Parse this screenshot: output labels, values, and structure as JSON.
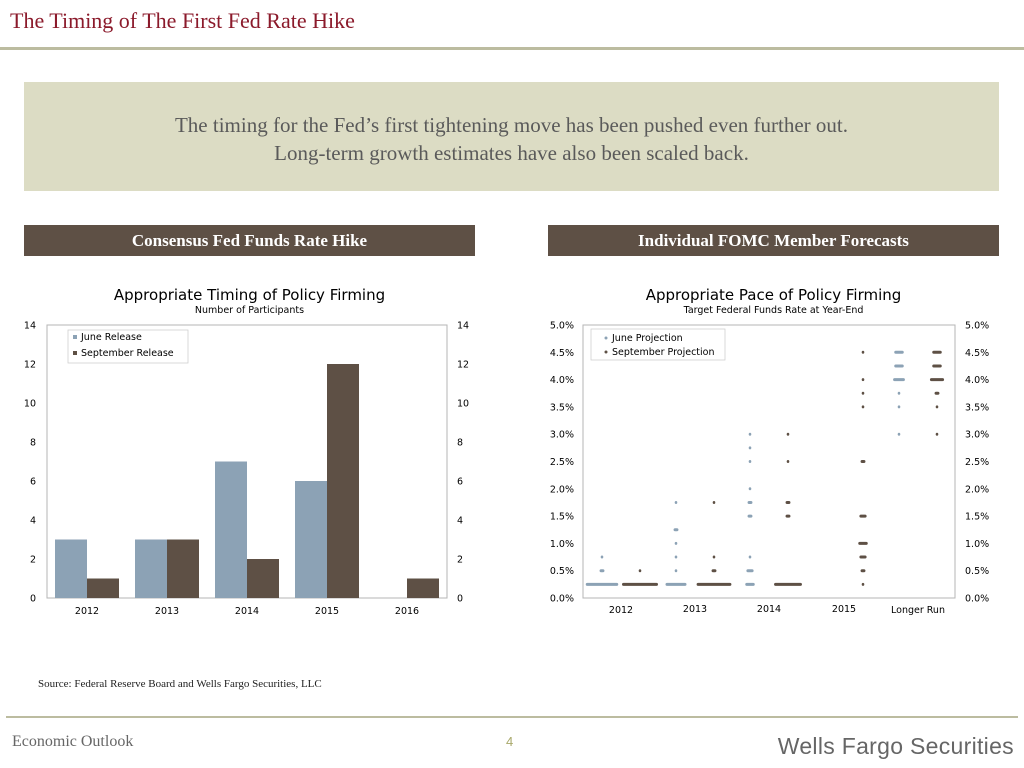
{
  "page": {
    "title": "The Timing of The First Fed Rate Hike",
    "banner_line1": "The timing for the Fed’s first tightening move has been pushed even further out.",
    "banner_line2": "Long-term growth estimates have also been scaled back.",
    "left_header": "Consensus Fed Funds Rate Hike",
    "right_header": "Individual FOMC Member Forecasts",
    "source": "Source: Federal Reserve Board and Wells Fargo Securities, LLC",
    "footer_left": "Economic Outlook",
    "page_number": "4",
    "brand": "Wells Fargo Securities"
  },
  "colors": {
    "june": "#8ca2b5",
    "september": "#5e5045",
    "title": "#8b1a2b",
    "header_box": "#5e5045",
    "banner": "#dcdcc4"
  },
  "chart_data": [
    {
      "type": "bar",
      "title": "Appropriate Timing of Policy Firming",
      "subtitle": "Number of Participants",
      "categories": [
        "2012",
        "2013",
        "2014",
        "2015",
        "2016"
      ],
      "series": [
        {
          "name": "June Release",
          "values": [
            3,
            3,
            7,
            6,
            0
          ]
        },
        {
          "name": "September Release",
          "values": [
            1,
            3,
            2,
            12,
            1
          ]
        }
      ],
      "ylim": [
        0,
        14
      ],
      "yticks": [
        "0",
        "2",
        "4",
        "6",
        "8",
        "10",
        "12",
        "14"
      ],
      "legend_position": "top-left",
      "grid": false
    },
    {
      "type": "scatter",
      "title": "Appropriate Pace of Policy Firming",
      "subtitle": "Target Federal Funds Rate at Year-End",
      "categories": [
        "2012",
        "2013",
        "2014",
        "2015",
        "Longer Run"
      ],
      "ylim": [
        0,
        5
      ],
      "yticks": [
        "0.0%",
        "0.5%",
        "1.0%",
        "1.5%",
        "2.0%",
        "2.5%",
        "3.0%",
        "3.5%",
        "4.0%",
        "4.5%",
        "5.0%"
      ],
      "legend_position": "top-left",
      "grid": false,
      "series": [
        {
          "name": "June Projection",
          "points": [
            {
              "x": "2012",
              "y": 0.25,
              "count": 14
            },
            {
              "x": "2012",
              "y": 0.5,
              "count": 2
            },
            {
              "x": "2012",
              "y": 0.75,
              "count": 1
            },
            {
              "x": "2013",
              "y": 0.25,
              "count": 9
            },
            {
              "x": "2013",
              "y": 0.5,
              "count": 1
            },
            {
              "x": "2013",
              "y": 0.75,
              "count": 1
            },
            {
              "x": "2013",
              "y": 1.0,
              "count": 1
            },
            {
              "x": "2013",
              "y": 1.25,
              "count": 2
            },
            {
              "x": "2013",
              "y": 1.75,
              "count": 1
            },
            {
              "x": "2014",
              "y": 0.25,
              "count": 4
            },
            {
              "x": "2014",
              "y": 0.5,
              "count": 3
            },
            {
              "x": "2014",
              "y": 0.75,
              "count": 1
            },
            {
              "x": "2014",
              "y": 1.5,
              "count": 2
            },
            {
              "x": "2014",
              "y": 1.75,
              "count": 2
            },
            {
              "x": "2014",
              "y": 2.0,
              "count": 1
            },
            {
              "x": "2014",
              "y": 2.5,
              "count": 1
            },
            {
              "x": "2014",
              "y": 2.75,
              "count": 1
            },
            {
              "x": "2014",
              "y": 3.0,
              "count": 1
            },
            {
              "x": "Longer Run",
              "y": 3.0,
              "count": 1
            },
            {
              "x": "Longer Run",
              "y": 3.5,
              "count": 1
            },
            {
              "x": "Longer Run",
              "y": 3.75,
              "count": 1
            },
            {
              "x": "Longer Run",
              "y": 4.0,
              "count": 5
            },
            {
              "x": "Longer Run",
              "y": 4.25,
              "count": 4
            },
            {
              "x": "Longer Run",
              "y": 4.5,
              "count": 4
            }
          ]
        },
        {
          "name": "September Projection",
          "points": [
            {
              "x": "2012",
              "y": 0.25,
              "count": 18
            },
            {
              "x": "2012",
              "y": 0.5,
              "count": 1
            },
            {
              "x": "2013",
              "y": 0.25,
              "count": 15
            },
            {
              "x": "2013",
              "y": 0.5,
              "count": 2
            },
            {
              "x": "2013",
              "y": 0.75,
              "count": 1
            },
            {
              "x": "2013",
              "y": 1.75,
              "count": 1
            },
            {
              "x": "2014",
              "y": 0.25,
              "count": 12
            },
            {
              "x": "2014",
              "y": 1.5,
              "count": 2
            },
            {
              "x": "2014",
              "y": 1.75,
              "count": 2
            },
            {
              "x": "2014",
              "y": 2.5,
              "count": 1
            },
            {
              "x": "2014",
              "y": 3.0,
              "count": 1
            },
            {
              "x": "2015",
              "y": 0.25,
              "count": 1
            },
            {
              "x": "2015",
              "y": 0.5,
              "count": 2
            },
            {
              "x": "2015",
              "y": 0.75,
              "count": 3
            },
            {
              "x": "2015",
              "y": 1.0,
              "count": 4
            },
            {
              "x": "2015",
              "y": 1.5,
              "count": 3
            },
            {
              "x": "2015",
              "y": 2.5,
              "count": 2
            },
            {
              "x": "2015",
              "y": 3.5,
              "count": 1
            },
            {
              "x": "2015",
              "y": 3.75,
              "count": 1
            },
            {
              "x": "2015",
              "y": 4.0,
              "count": 1
            },
            {
              "x": "2015",
              "y": 4.5,
              "count": 1
            },
            {
              "x": "Longer Run",
              "y": 3.0,
              "count": 1
            },
            {
              "x": "Longer Run",
              "y": 3.5,
              "count": 1
            },
            {
              "x": "Longer Run",
              "y": 3.75,
              "count": 2
            },
            {
              "x": "Longer Run",
              "y": 4.0,
              "count": 6
            },
            {
              "x": "Longer Run",
              "y": 4.25,
              "count": 4
            },
            {
              "x": "Longer Run",
              "y": 4.5,
              "count": 4
            }
          ]
        }
      ]
    }
  ]
}
